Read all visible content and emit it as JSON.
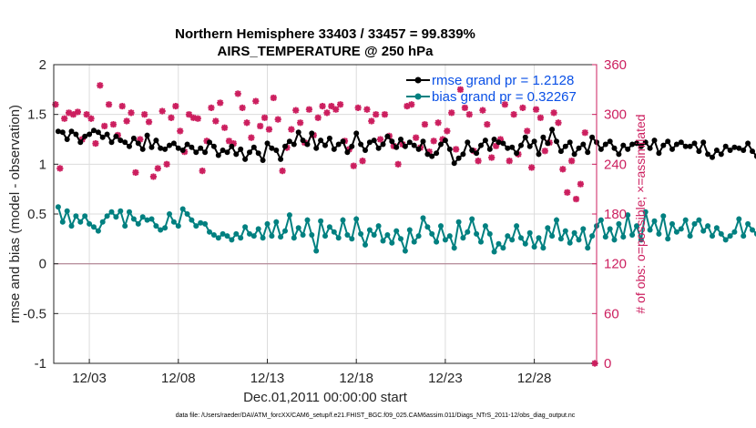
{
  "chart_data": {
    "type": "line",
    "title_line1": "Northern Hemisphere 33403 / 33457 = 99.839%",
    "title_line2": "AIRS_TEMPERATURE @ 250 hPa",
    "xlabel": "Dec.01,2011 00:00:00 start",
    "ylabel": "rmse and bias (model - observation)",
    "y2label": "# of obs: o=possible; ×=assimilated",
    "footer": "data file: /Users/raeder/DAI/ATM_forcXX/CAM6_setup/f.e21.FHIST_BGC.f09_025.CAM6assim.011/Diags_NTrS_2011-12/obs_diag_output.nc",
    "xlim": [
      0,
      30.5
    ],
    "ylim": [
      -1,
      2
    ],
    "y2lim": [
      0,
      360
    ],
    "x_tick_positions": [
      2,
      7,
      12,
      17,
      22,
      27
    ],
    "x_tick_labels": [
      "12/03",
      "12/08",
      "12/13",
      "12/18",
      "12/23",
      "12/28"
    ],
    "y_ticks": [
      -1,
      -0.5,
      0,
      0.5,
      1,
      1.5,
      2
    ],
    "y_tick_labels": [
      "-1",
      "-0.5",
      "0",
      "0.5",
      "1",
      "1.5",
      "2"
    ],
    "y2_ticks": [
      0,
      60,
      120,
      180,
      240,
      300,
      360
    ],
    "y2_tick_labels": [
      "0",
      "60",
      "120",
      "180",
      "240",
      "300",
      "360"
    ],
    "grid": true,
    "legend_location": "top-right",
    "colors": {
      "rmse": "#000000",
      "bias": "#008080",
      "obs": "#cc1f5f",
      "zero": "#b08090",
      "legend_text": "#0a50e6"
    },
    "series": [
      {
        "name": "rmse grand pr = 1.2128",
        "t_start": 0.25,
        "t_step": 0.25,
        "values": [
          1.33,
          1.32,
          1.25,
          1.33,
          1.3,
          1.22,
          1.28,
          1.3,
          1.34,
          1.32,
          1.27,
          1.3,
          1.22,
          1.28,
          1.24,
          1.22,
          1.18,
          1.26,
          1.21,
          1.15,
          1.29,
          1.17,
          1.24,
          1.16,
          1.15,
          1.19,
          1.21,
          1.16,
          1.14,
          1.2,
          1.17,
          1.12,
          1.16,
          1.12,
          1.22,
          1.18,
          1.09,
          1.14,
          1.12,
          1.18,
          1.1,
          1.15,
          1.05,
          1.12,
          1.17,
          1.11,
          1.04,
          1.21,
          1.16,
          1.14,
          1.05,
          1.18,
          1.23,
          1.2,
          1.32,
          1.24,
          1.2,
          1.31,
          1.16,
          1.24,
          1.19,
          1.26,
          1.15,
          1.2,
          1.23,
          1.12,
          1.18,
          1.31,
          1.2,
          1.14,
          1.22,
          1.24,
          1.16,
          1.2,
          1.28,
          1.23,
          1.17,
          1.25,
          1.18,
          1.22,
          1.19,
          1.15,
          1.23,
          1.1,
          1.08,
          1.11,
          1.2,
          1.24,
          1.15,
          1.01,
          1.06,
          1.1,
          1.22,
          1.14,
          1.11,
          1.19,
          1.24,
          1.15,
          1.25,
          1.22,
          1.21,
          1.16,
          1.17,
          1.11,
          1.19,
          1.27,
          1.18,
          1.23,
          1.1,
          1.27,
          1.21,
          1.35,
          1.23,
          1.13,
          1.18,
          1.22,
          1.1,
          1.16,
          1.2,
          1.12,
          1.27,
          1.22,
          1.15,
          1.2,
          1.23,
          1.16,
          1.1,
          1.19,
          1.15,
          1.2,
          1.21,
          1.18,
          1.22,
          1.16,
          1.24,
          1.11,
          1.19,
          1.23,
          1.15,
          1.2,
          1.22,
          1.18,
          1.18,
          1.21,
          1.13,
          1.22,
          1.1,
          1.07,
          1.14,
          1.1,
          1.18,
          1.14,
          1.17,
          1.16,
          1.14,
          1.21,
          1.13,
          1.08,
          1.16,
          1.16,
          1.13,
          1.1,
          1.07,
          1.15,
          1.13,
          1.08,
          1.18,
          1.12,
          1.02,
          1.0
        ]
      },
      {
        "name": "bias grand pr = 0.32267",
        "t_start": 0.25,
        "t_step": 0.25,
        "values": [
          0.57,
          0.42,
          0.53,
          0.38,
          0.48,
          0.42,
          0.48,
          0.4,
          0.37,
          0.33,
          0.42,
          0.48,
          0.52,
          0.47,
          0.53,
          0.38,
          0.52,
          0.45,
          0.4,
          0.47,
          0.44,
          0.45,
          0.38,
          0.34,
          0.36,
          0.5,
          0.42,
          0.38,
          0.55,
          0.5,
          0.44,
          0.38,
          0.41,
          0.4,
          0.32,
          0.29,
          0.26,
          0.3,
          0.28,
          0.24,
          0.3,
          0.26,
          0.37,
          0.3,
          0.28,
          0.35,
          0.26,
          0.4,
          0.28,
          0.42,
          0.27,
          0.33,
          0.49,
          0.26,
          0.36,
          0.29,
          0.44,
          0.29,
          0.13,
          0.43,
          0.28,
          0.37,
          0.32,
          0.26,
          0.44,
          0.29,
          0.25,
          0.45,
          0.3,
          0.19,
          0.34,
          0.29,
          0.38,
          0.23,
          0.29,
          0.21,
          0.33,
          0.25,
          0.13,
          0.34,
          0.22,
          0.28,
          0.46,
          0.37,
          0.3,
          0.22,
          0.38,
          0.24,
          0.28,
          0.16,
          0.42,
          0.26,
          0.32,
          0.45,
          0.3,
          0.22,
          0.38,
          0.3,
          0.12,
          0.2,
          0.16,
          0.28,
          0.24,
          0.38,
          0.26,
          0.2,
          0.31,
          0.17,
          0.26,
          0.16,
          0.36,
          0.28,
          0.44,
          0.25,
          0.33,
          0.21,
          0.31,
          0.24,
          0.35,
          0.16,
          0.28,
          0.38,
          0.44,
          0.27,
          0.35,
          0.24,
          0.4,
          0.27,
          0.49,
          0.29,
          0.38,
          0.24,
          0.52,
          0.34,
          0.43,
          0.3,
          0.48,
          0.25,
          0.4,
          0.32,
          0.35,
          0.44,
          0.28,
          0.4,
          0.44,
          0.33,
          0.38,
          0.28,
          0.36,
          0.3,
          0.24,
          0.28,
          0.32,
          0.45,
          0.28,
          0.4,
          0.34,
          0.3,
          0.36,
          0.28,
          0.37,
          0.3,
          0.44,
          0.26,
          0.3,
          0.24,
          0.34,
          0.36,
          0.33,
          0.3,
          0.26,
          0.28,
          0.32,
          0.26,
          0.2
        ]
      },
      {
        "name": "obs assimilated",
        "x": [
          0.1,
          0.35,
          0.6,
          0.85,
          1.1,
          1.35,
          1.6,
          1.85,
          2.1,
          2.35,
          2.6,
          2.85,
          3.1,
          3.35,
          3.6,
          3.85,
          4.1,
          4.35,
          4.6,
          4.85,
          5.1,
          5.35,
          5.6,
          5.85,
          6.1,
          6.35,
          6.6,
          6.85,
          7.1,
          7.35,
          7.6,
          7.85,
          8.1,
          8.35,
          8.6,
          8.85,
          9.1,
          9.35,
          9.6,
          9.85,
          10.1,
          10.35,
          10.6,
          10.85,
          11.1,
          11.35,
          11.6,
          11.85,
          12.1,
          12.35,
          12.6,
          12.85,
          13.1,
          13.35,
          13.6,
          13.85,
          14.1,
          14.35,
          14.6,
          14.85,
          15.1,
          15.35,
          15.6,
          15.85,
          16.1,
          16.35,
          16.6,
          16.85,
          17.1,
          17.35,
          17.6,
          17.85,
          18.1,
          18.35,
          18.6,
          18.85,
          19.1,
          19.35,
          19.6,
          19.85,
          20.1,
          20.35,
          20.6,
          20.85,
          21.1,
          21.35,
          21.6,
          21.85,
          22.1,
          22.35,
          22.6,
          22.85,
          23.1,
          23.35,
          23.6,
          23.85,
          24.1,
          24.35,
          24.6,
          24.85,
          25.1,
          25.35,
          25.6,
          25.85,
          26.1,
          26.35,
          26.6,
          26.85,
          27.1,
          27.35,
          27.6,
          27.85,
          28.1,
          28.35,
          28.6,
          28.85,
          29.1,
          29.35,
          29.6,
          29.85,
          30.4
        ],
        "values": [
          312,
          235,
          295,
          302,
          300,
          303,
          270,
          300,
          295,
          265,
          335,
          286,
          312,
          288,
          275,
          310,
          292,
          302,
          230,
          270,
          300,
          291,
          225,
          235,
          304,
          240,
          296,
          310,
          280,
          255,
          300,
          296,
          295,
          232,
          268,
          308,
          292,
          314,
          284,
          268,
          265,
          325,
          308,
          290,
          272,
          316,
          286,
          296,
          282,
          320,
          294,
          232,
          260,
          282,
          305,
          290,
          266,
          306,
          275,
          296,
          310,
          302,
          310,
          306,
          312,
          268,
          258,
          238,
          308,
          244,
          306,
          292,
          300,
          270,
          300,
          274,
          262,
          240,
          264,
          310,
          312,
          272,
          260,
          288,
          255,
          268,
          290,
          270,
          280,
          302,
          258,
          330,
          308,
          300,
          256,
          244,
          305,
          288,
          248,
          262,
          270,
          312,
          244,
          300,
          252,
          308,
          280,
          236,
          306,
          296,
          256,
          266,
          302,
          290,
          234,
          206,
          244,
          198,
          216,
          278,
          0
        ]
      }
    ]
  }
}
